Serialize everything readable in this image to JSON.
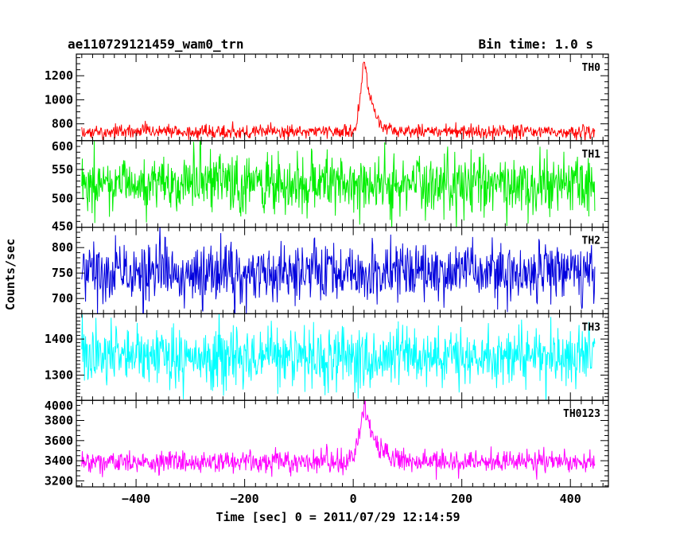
{
  "header": {
    "title": "ae110729121459_wam0_trn",
    "bin_time": "Bin time: 1.0 s"
  },
  "chart_data": {
    "type": "line",
    "title": "ae110729121459_wam0_trn",
    "subtitle": "Bin time: 1.0 s",
    "xlabel": "Time [sec] 0 = 2011/07/29 12:14:59",
    "ylabel": "Counts/sec",
    "xlim": [
      -510,
      470
    ],
    "xticks": [
      -400,
      -200,
      0,
      200,
      400
    ],
    "x_range": [
      -500,
      445
    ],
    "legend": "none",
    "grid": false,
    "panels": [
      {
        "name": "TH0",
        "color": "#ff0000",
        "ylim": [
          660,
          1380
        ],
        "yticks": [
          800,
          1000,
          1200
        ],
        "baseline": 735,
        "noise": 28,
        "burst": {
          "peak_time": 22,
          "peak_value": 1330,
          "rise": 8,
          "decay": 14
        }
      },
      {
        "name": "TH1",
        "color": "#00ee00",
        "ylim": [
          450,
          600
        ],
        "yticks": [
          450,
          500,
          550,
          600
        ],
        "baseline": 525,
        "noise": 27
      },
      {
        "name": "TH2",
        "color": "#0000dd",
        "ylim": [
          670,
          840
        ],
        "yticks": [
          700,
          750,
          800
        ],
        "baseline": 752,
        "noise": 32
      },
      {
        "name": "TH3",
        "color": "#00ffff",
        "ylim": [
          1230,
          1470
        ],
        "yticks": [
          1300,
          1400
        ],
        "baseline": 1350,
        "noise": 42
      },
      {
        "name": "TH0123",
        "color": "#ff00ff",
        "ylim": [
          3140,
          4000
        ],
        "yticks": [
          3200,
          3400,
          3600,
          3800,
          4000
        ],
        "baseline": 3390,
        "noise": 55,
        "burst": {
          "peak_time": 22,
          "peak_value": 3950,
          "rise": 10,
          "decay": 20
        }
      }
    ]
  }
}
